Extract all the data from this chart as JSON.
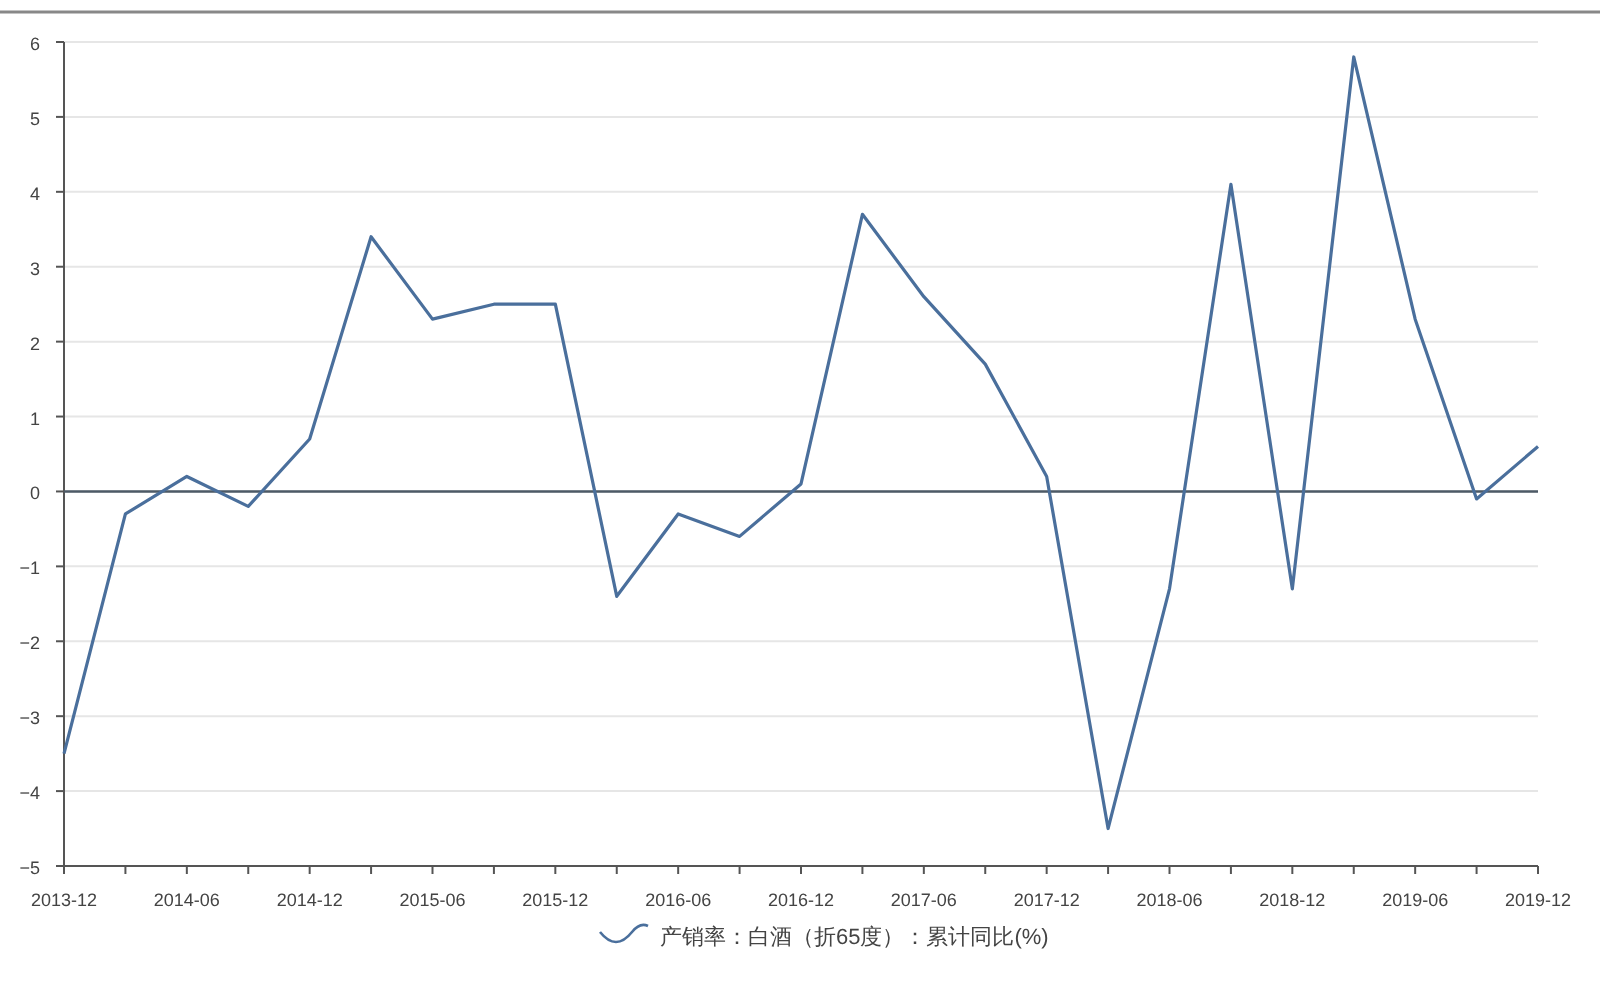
{
  "chart_data": {
    "type": "line",
    "categories": [
      "2013-12",
      null,
      "2014-06",
      null,
      "2014-12",
      null,
      "2015-06",
      null,
      "2015-12",
      null,
      "2016-06",
      null,
      "2016-12",
      null,
      "2017-06",
      null,
      "2017-12",
      null,
      "2018-06",
      null,
      "2018-12",
      null,
      "2019-06",
      null,
      "2019-12"
    ],
    "series": [
      {
        "name": "产销率：白酒（折65度）：累计同比(%)",
        "color": "#4a6f9c",
        "values": [
          -3.5,
          -0.3,
          0.2,
          -0.2,
          0.7,
          3.4,
          2.3,
          2.5,
          2.5,
          -1.4,
          -0.3,
          -0.6,
          0.1,
          3.7,
          2.6,
          1.7,
          0.2,
          -4.5,
          -1.3,
          4.1,
          -1.3,
          5.8,
          2.3,
          -0.1,
          0.6
        ]
      }
    ],
    "ylim": [
      -5,
      6
    ],
    "yticks": [
      -5,
      -4,
      -3,
      -2,
      -1,
      0,
      1,
      2,
      3,
      4,
      5,
      6
    ],
    "ref_lines": [
      {
        "axis": "y",
        "value": 0,
        "color": "#4d5a66"
      }
    ],
    "grid": "y",
    "legend": "bottom",
    "marker": "none",
    "line_style": "solid"
  }
}
